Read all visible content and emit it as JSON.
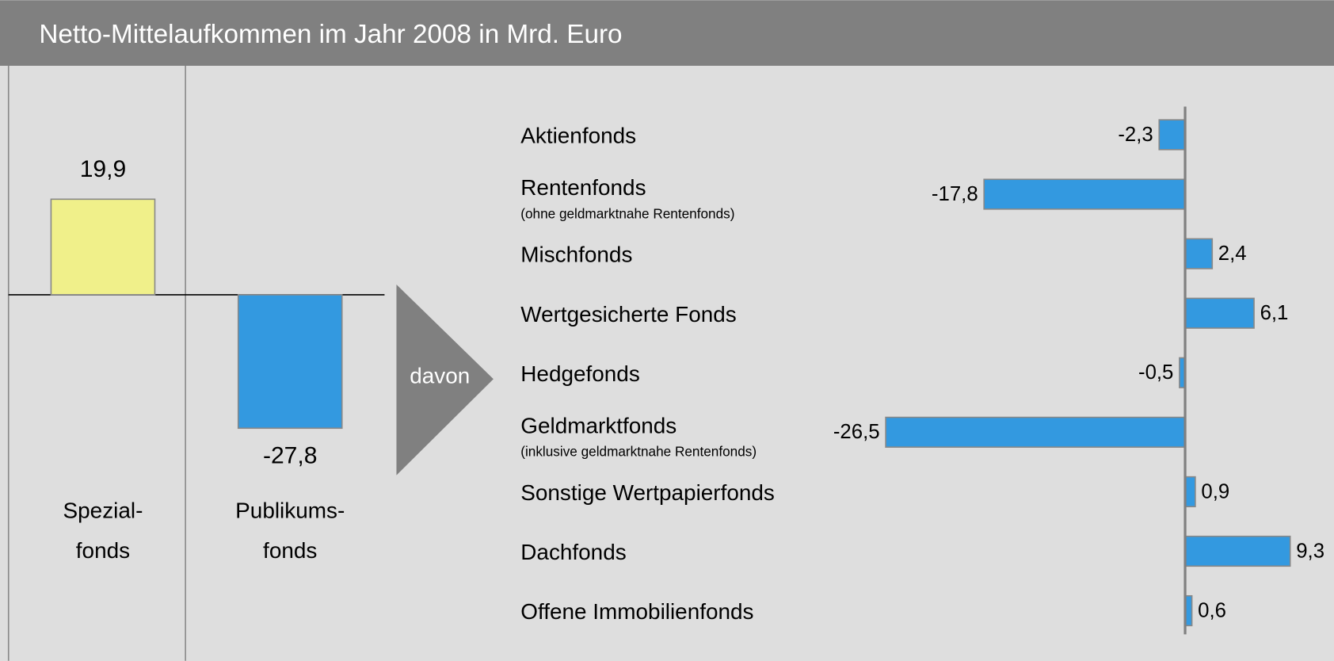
{
  "title": "Netto-Mittelaufkommen im Jahr 2008 in Mrd. Euro",
  "arrow_label": "davon",
  "chart_data": [
    {
      "type": "bar",
      "categories": [
        "Spezial-\nfonds",
        "Publikums-\nfonds"
      ],
      "values": [
        19.9,
        -27.8
      ],
      "value_labels": [
        "19,9",
        "-27,8"
      ],
      "colors": [
        "#f0f08a",
        "#3399e0"
      ]
    },
    {
      "type": "barh",
      "categories": [
        "Aktienfonds",
        "Rentenfonds",
        "Mischfonds",
        "Wertgesicherte Fonds",
        "Hedgefonds",
        "Geldmarktfonds",
        "Sonstige Wertpapierfonds",
        "Dachfonds",
        "Offene Immobilienfonds"
      ],
      "category_notes": [
        null,
        "(ohne geldmarktnahe Rentenfonds)",
        null,
        null,
        null,
        "(inklusive geldmarktnahe Rentenfonds)",
        null,
        null,
        null
      ],
      "values": [
        -2.3,
        -17.8,
        2.4,
        6.1,
        -0.5,
        -26.5,
        0.9,
        9.3,
        0.6
      ],
      "value_labels": [
        "-2,3",
        "-17,8",
        "2,4",
        "6,1",
        "-0,5",
        "-26,5",
        "0,9",
        "9,3",
        "0,6"
      ],
      "color": "#3399e0"
    }
  ]
}
